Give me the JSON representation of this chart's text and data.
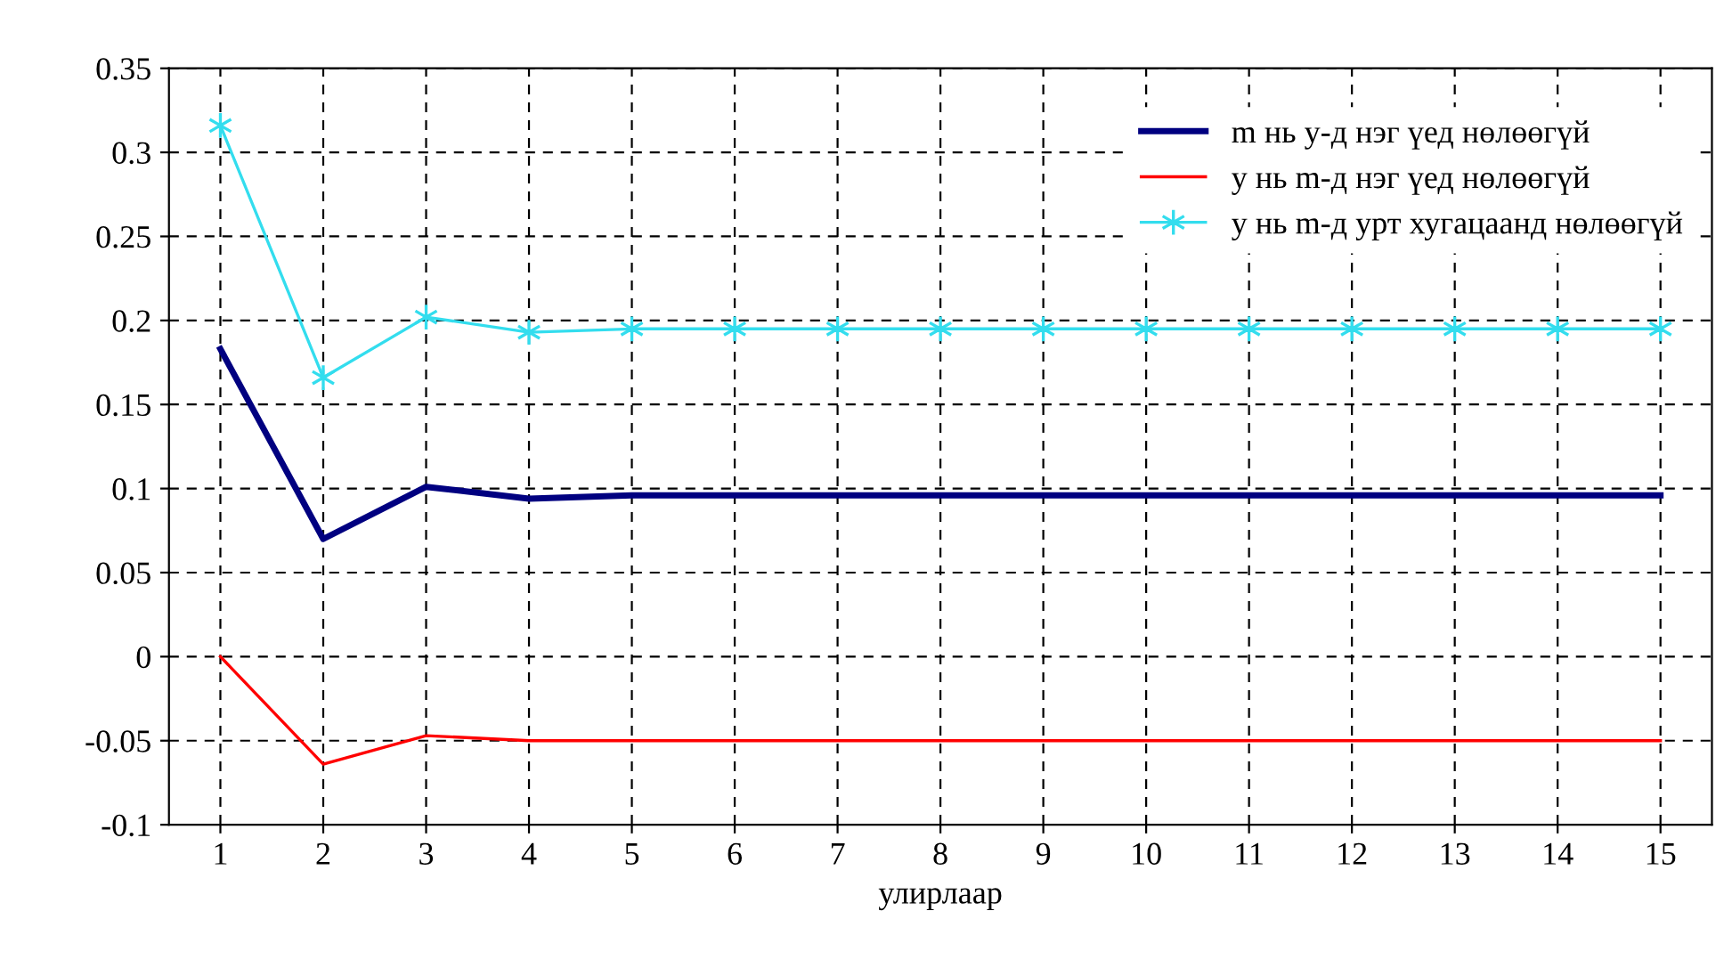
{
  "chart_data": {
    "type": "line",
    "xlabel": "улирлаар",
    "categories": [
      "1",
      "2",
      "3",
      "4",
      "5",
      "6",
      "7",
      "8",
      "9",
      "10",
      "11",
      "12",
      "13",
      "14",
      "15"
    ],
    "series": [
      {
        "name": "m нь y-д нэг үед нөлөөгүй",
        "color": "#000080",
        "marker": "none",
        "values": [
          0.183,
          0.07,
          0.101,
          0.094,
          0.096,
          0.096,
          0.096,
          0.096,
          0.096,
          0.096,
          0.096,
          0.096,
          0.096,
          0.096,
          0.096
        ]
      },
      {
        "name": "y нь m-д нэг үед нөлөөгүй",
        "color": "#ff0000",
        "marker": "none",
        "values": [
          0,
          -0.064,
          -0.047,
          -0.05,
          -0.05,
          -0.05,
          -0.05,
          -0.05,
          -0.05,
          -0.05,
          -0.05,
          -0.05,
          -0.05,
          -0.05,
          -0.05
        ]
      },
      {
        "name": "y нь m-д урт хугацаанд нөлөөгүй",
        "color": "#33ddee",
        "marker": "cross",
        "values": [
          0.316,
          0.166,
          0.202,
          0.193,
          0.195,
          0.195,
          0.195,
          0.195,
          0.195,
          0.195,
          0.195,
          0.195,
          0.195,
          0.195,
          0.195
        ]
      }
    ],
    "ylim": [
      -0.1,
      0.35
    ],
    "yticks": [
      -0.1,
      -0.05,
      0,
      0.05,
      0.1,
      0.15,
      0.2,
      0.25,
      0.3,
      0.35
    ],
    "grid": true,
    "line_style": "solid",
    "legend": "top right"
  }
}
